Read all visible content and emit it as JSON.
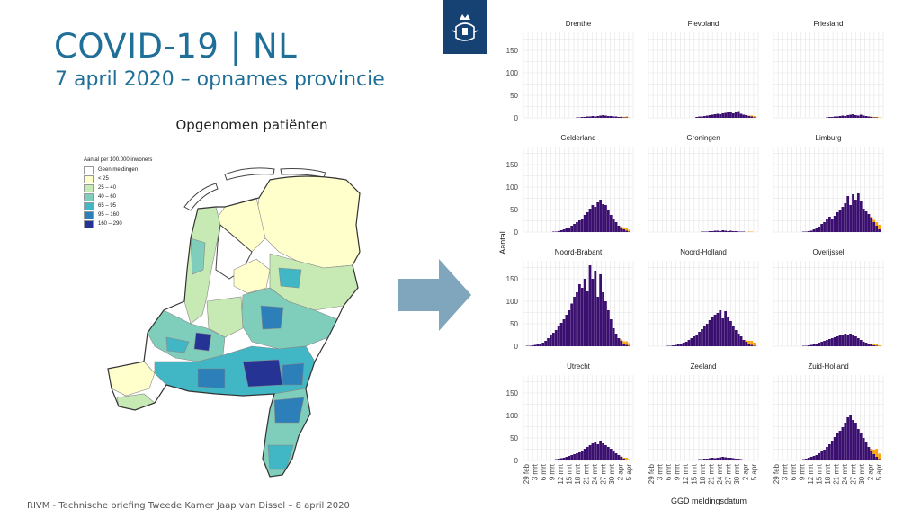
{
  "slide": {
    "title": "COVID-19 | NL",
    "subtitle": "7 april 2020 – opnames provincie",
    "footer": "RIVM - Technische briefing Tweede Kamer Jaap van Dissel – 8 april 2020"
  },
  "map": {
    "title": "Opgenomen patiënten",
    "legend_title": "Aantal per 100.000 inwoners",
    "legend_items": [
      {
        "label": "Geen meldingen",
        "color": "#ffffff"
      },
      {
        "label": "< 25",
        "color": "#ffffcc"
      },
      {
        "label": "25 – 40",
        "color": "#c7e9b4"
      },
      {
        "label": "40 – 60",
        "color": "#7fcdbb"
      },
      {
        "label": "65 – 95",
        "color": "#41b6c4"
      },
      {
        "label": "95 – 160",
        "color": "#2c7fb8"
      },
      {
        "label": "160 – 290",
        "color": "#253494"
      }
    ]
  },
  "colors": {
    "title_blue": "#1f6f99",
    "bar_dark": "#3b0f6f",
    "bar_recent": "#fca50a",
    "arrow": "#7fa6bd",
    "logo_bg": "#154273"
  },
  "chart_data": {
    "type": "bar",
    "layout": "facet 4x3",
    "ylabel": "Aantal",
    "xlabel": "GGD meldingsdatum",
    "ylim": [
      0,
      190
    ],
    "y_ticks": [
      0,
      50,
      100,
      150
    ],
    "x_tick_labels": [
      "29 feb",
      "3 mrt",
      "6 mrt",
      "9 mrt",
      "12 mrt",
      "15 mrt",
      "18 mrt",
      "21 mrt",
      "24 mrt",
      "27 mrt",
      "30 mrt",
      "2 apr",
      "5 apr"
    ],
    "date_range": [
      "27 feb",
      "6 apr"
    ],
    "grid": true,
    "series": [
      {
        "name": "Drenthe",
        "values": [
          0,
          0,
          0,
          0,
          0,
          0,
          0,
          0,
          0,
          0,
          0,
          0,
          0,
          0,
          0,
          0,
          0,
          0,
          0,
          1,
          1,
          2,
          2,
          3,
          3,
          4,
          3,
          4,
          5,
          6,
          5,
          4,
          4,
          3,
          3,
          2,
          2,
          1,
          1,
          0
        ],
        "recent": [
          0,
          0,
          0,
          0,
          0,
          0,
          0,
          0,
          0,
          0,
          0,
          0,
          0,
          0,
          0,
          0,
          0,
          0,
          0,
          0,
          0,
          0,
          0,
          0,
          0,
          0,
          0,
          0,
          0,
          0,
          0,
          0,
          0,
          0,
          0,
          0,
          1,
          1,
          2,
          1
        ]
      },
      {
        "name": "Flevoland",
        "values": [
          0,
          0,
          0,
          0,
          0,
          0,
          0,
          0,
          0,
          0,
          0,
          0,
          0,
          0,
          0,
          0,
          0,
          2,
          3,
          3,
          4,
          5,
          6,
          7,
          8,
          9,
          8,
          10,
          11,
          13,
          14,
          10,
          12,
          15,
          9,
          7,
          6,
          4,
          3,
          1
        ],
        "recent": [
          0,
          0,
          0,
          0,
          0,
          0,
          0,
          0,
          0,
          0,
          0,
          0,
          0,
          0,
          0,
          0,
          0,
          0,
          0,
          0,
          0,
          0,
          0,
          0,
          0,
          0,
          0,
          0,
          0,
          0,
          0,
          0,
          0,
          0,
          0,
          0,
          0,
          1,
          2,
          3
        ]
      },
      {
        "name": "Friesland",
        "values": [
          0,
          0,
          0,
          0,
          0,
          0,
          0,
          0,
          0,
          0,
          0,
          0,
          0,
          0,
          0,
          0,
          0,
          0,
          0,
          1,
          2,
          2,
          3,
          3,
          4,
          5,
          4,
          6,
          7,
          8,
          6,
          5,
          7,
          5,
          4,
          3,
          2,
          1,
          1,
          0
        ],
        "recent": [
          0,
          0,
          0,
          0,
          0,
          0,
          0,
          0,
          0,
          0,
          0,
          0,
          0,
          0,
          0,
          0,
          0,
          0,
          0,
          0,
          0,
          0,
          0,
          0,
          0,
          0,
          0,
          0,
          0,
          0,
          0,
          0,
          0,
          0,
          0,
          0,
          1,
          1,
          1,
          1
        ]
      },
      {
        "name": "Gelderland",
        "values": [
          0,
          0,
          0,
          0,
          0,
          0,
          0,
          0,
          0,
          0,
          1,
          1,
          2,
          4,
          6,
          8,
          10,
          14,
          18,
          22,
          26,
          30,
          38,
          44,
          52,
          60,
          56,
          66,
          72,
          62,
          60,
          48,
          38,
          30,
          22,
          14,
          10,
          6,
          3,
          1
        ],
        "recent": [
          0,
          0,
          0,
          0,
          0,
          0,
          0,
          0,
          0,
          0,
          0,
          0,
          0,
          0,
          0,
          0,
          0,
          0,
          0,
          0,
          0,
          0,
          0,
          0,
          0,
          0,
          0,
          0,
          0,
          0,
          0,
          0,
          0,
          0,
          0,
          0,
          2,
          4,
          6,
          4
        ]
      },
      {
        "name": "Groningen",
        "values": [
          0,
          0,
          0,
          0,
          0,
          0,
          0,
          0,
          0,
          0,
          0,
          0,
          0,
          0,
          0,
          0,
          0,
          0,
          0,
          1,
          1,
          1,
          2,
          2,
          3,
          3,
          2,
          4,
          3,
          2,
          3,
          2,
          2,
          1,
          1,
          1,
          0,
          0,
          0,
          0
        ],
        "recent": [
          0,
          0,
          0,
          0,
          0,
          0,
          0,
          0,
          0,
          0,
          0,
          0,
          0,
          0,
          0,
          0,
          0,
          0,
          0,
          0,
          0,
          0,
          0,
          0,
          0,
          0,
          0,
          0,
          0,
          0,
          0,
          0,
          0,
          0,
          0,
          0,
          0,
          1,
          1,
          0
        ]
      },
      {
        "name": "Limburg",
        "values": [
          0,
          0,
          0,
          0,
          0,
          0,
          0,
          0,
          0,
          0,
          1,
          1,
          2,
          3,
          6,
          8,
          12,
          18,
          22,
          28,
          34,
          30,
          36,
          44,
          50,
          56,
          64,
          80,
          60,
          84,
          72,
          86,
          68,
          52,
          46,
          40,
          32,
          22,
          14,
          6
        ],
        "recent": [
          0,
          0,
          0,
          0,
          0,
          0,
          0,
          0,
          0,
          0,
          0,
          0,
          0,
          0,
          0,
          0,
          0,
          0,
          0,
          0,
          0,
          0,
          0,
          0,
          0,
          0,
          0,
          0,
          0,
          0,
          0,
          0,
          0,
          0,
          0,
          0,
          2,
          5,
          8,
          10
        ]
      },
      {
        "name": "Noord-Brabant",
        "values": [
          1,
          1,
          2,
          3,
          4,
          5,
          8,
          12,
          18,
          24,
          30,
          36,
          44,
          52,
          60,
          70,
          80,
          95,
          110,
          120,
          138,
          130,
          150,
          122,
          180,
          150,
          168,
          110,
          160,
          120,
          100,
          80,
          60,
          40,
          28,
          18,
          12,
          6,
          3,
          1
        ],
        "recent": [
          0,
          0,
          0,
          0,
          0,
          0,
          0,
          0,
          0,
          0,
          0,
          0,
          0,
          0,
          0,
          0,
          0,
          0,
          0,
          0,
          0,
          0,
          0,
          0,
          0,
          0,
          0,
          0,
          0,
          0,
          0,
          0,
          0,
          0,
          0,
          0,
          3,
          5,
          8,
          6
        ]
      },
      {
        "name": "Noord-Holland",
        "values": [
          0,
          0,
          0,
          0,
          0,
          0,
          1,
          1,
          2,
          3,
          4,
          6,
          8,
          10,
          14,
          18,
          22,
          26,
          32,
          38,
          44,
          50,
          58,
          66,
          70,
          74,
          80,
          62,
          78,
          66,
          56,
          46,
          36,
          28,
          22,
          14,
          10,
          6,
          3,
          1
        ],
        "recent": [
          0,
          0,
          0,
          0,
          0,
          0,
          0,
          0,
          0,
          0,
          0,
          0,
          0,
          0,
          0,
          0,
          0,
          0,
          0,
          0,
          0,
          0,
          0,
          0,
          0,
          0,
          0,
          0,
          0,
          0,
          0,
          0,
          0,
          0,
          0,
          0,
          3,
          6,
          9,
          7
        ]
      },
      {
        "name": "Overijssel",
        "values": [
          0,
          0,
          0,
          0,
          0,
          0,
          0,
          0,
          0,
          0,
          1,
          1,
          2,
          3,
          4,
          6,
          8,
          10,
          12,
          14,
          16,
          18,
          20,
          22,
          24,
          26,
          28,
          26,
          28,
          24,
          22,
          18,
          14,
          10,
          8,
          6,
          4,
          2,
          1,
          0
        ],
        "recent": [
          0,
          0,
          0,
          0,
          0,
          0,
          0,
          0,
          0,
          0,
          0,
          0,
          0,
          0,
          0,
          0,
          0,
          0,
          0,
          0,
          0,
          0,
          0,
          0,
          0,
          0,
          0,
          0,
          0,
          0,
          0,
          0,
          0,
          0,
          0,
          0,
          1,
          2,
          3,
          2
        ]
      },
      {
        "name": "Utrecht",
        "values": [
          0,
          0,
          0,
          0,
          0,
          0,
          0,
          1,
          1,
          2,
          2,
          3,
          4,
          5,
          6,
          8,
          10,
          12,
          14,
          16,
          18,
          22,
          26,
          30,
          34,
          38,
          40,
          36,
          44,
          38,
          34,
          30,
          26,
          20,
          16,
          12,
          8,
          4,
          2,
          1
        ],
        "recent": [
          0,
          0,
          0,
          0,
          0,
          0,
          0,
          0,
          0,
          0,
          0,
          0,
          0,
          0,
          0,
          0,
          0,
          0,
          0,
          0,
          0,
          0,
          0,
          0,
          0,
          0,
          0,
          0,
          0,
          0,
          0,
          0,
          0,
          0,
          0,
          0,
          1,
          2,
          4,
          2
        ]
      },
      {
        "name": "Zeeland",
        "values": [
          0,
          0,
          0,
          0,
          0,
          0,
          0,
          0,
          0,
          0,
          0,
          0,
          0,
          1,
          1,
          1,
          2,
          2,
          3,
          3,
          4,
          4,
          5,
          6,
          5,
          6,
          7,
          8,
          7,
          6,
          6,
          5,
          4,
          4,
          3,
          2,
          2,
          1,
          1,
          0
        ],
        "recent": [
          0,
          0,
          0,
          0,
          0,
          0,
          0,
          0,
          0,
          0,
          0,
          0,
          0,
          0,
          0,
          0,
          0,
          0,
          0,
          0,
          0,
          0,
          0,
          0,
          0,
          0,
          0,
          0,
          0,
          0,
          0,
          0,
          0,
          0,
          0,
          0,
          0,
          1,
          1,
          1
        ]
      },
      {
        "name": "Zuid-Holland",
        "values": [
          0,
          0,
          0,
          0,
          0,
          0,
          1,
          1,
          2,
          2,
          3,
          4,
          6,
          8,
          10,
          12,
          16,
          20,
          24,
          30,
          36,
          44,
          52,
          60,
          66,
          74,
          84,
          96,
          100,
          90,
          84,
          70,
          60,
          50,
          40,
          30,
          22,
          14,
          8,
          3
        ],
        "recent": [
          0,
          0,
          0,
          0,
          0,
          0,
          0,
          0,
          0,
          0,
          0,
          0,
          0,
          0,
          0,
          0,
          0,
          0,
          0,
          0,
          0,
          0,
          0,
          0,
          0,
          0,
          0,
          0,
          0,
          0,
          0,
          0,
          0,
          0,
          0,
          0,
          4,
          10,
          18,
          12
        ]
      }
    ]
  }
}
